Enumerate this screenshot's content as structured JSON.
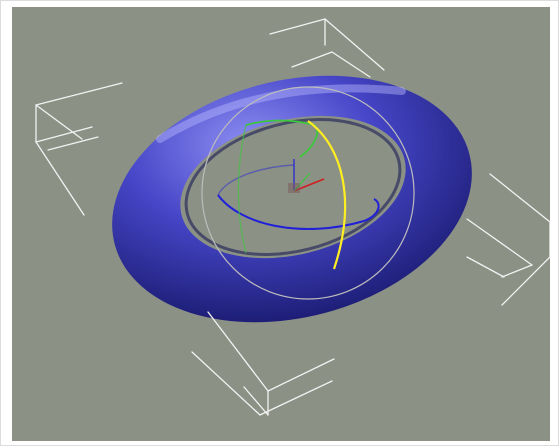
{
  "viewport": {
    "background_color": "#8b9185",
    "bounding_box_color": "#f2f2f2"
  },
  "object": {
    "shape": "torus",
    "selected": true,
    "color": "#4646c8"
  },
  "rotate_gizmo": {
    "x_axis_color": "#d02020",
    "y_axis_color": "#3cc83c",
    "z_axis_color": "#2020d8",
    "active_ring_color": "#ffee22",
    "outer_ring_color": "#bcbcbc"
  }
}
